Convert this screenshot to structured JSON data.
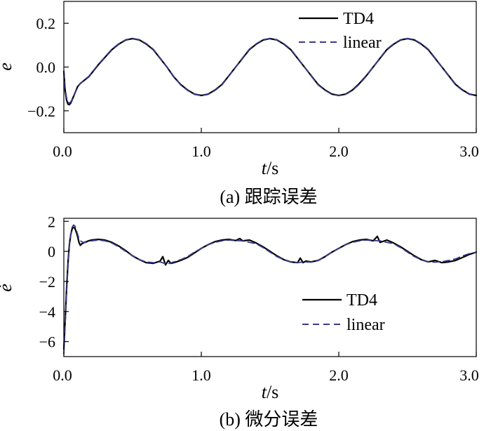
{
  "chart_data": [
    {
      "type": "line",
      "caption": "(a) 跟踪误差",
      "xlabel_var": "t",
      "xlabel_unit": "/s",
      "ylabel": "e",
      "xlim": [
        0,
        3.0
      ],
      "ylim": [
        -0.3,
        0.3
      ],
      "xticks": [
        0.0,
        1.0,
        2.0,
        3.0
      ],
      "xtick_labels": [
        "0.0",
        "1.0",
        "2.0",
        "3.0"
      ],
      "yticks": [
        0.2,
        0.0,
        -0.2
      ],
      "ytick_labels": [
        "0.2",
        "0.0",
        "−0.2"
      ],
      "legend_position": "top-right",
      "series": [
        {
          "name": "TD4",
          "style": "solid",
          "color": "#000000",
          "x": [
            0,
            0.005,
            0.01,
            0.02,
            0.03,
            0.04,
            0.05,
            0.06,
            0.08,
            0.1,
            0.12,
            0.15,
            0.18,
            0.2,
            0.25,
            0.3,
            0.35,
            0.4,
            0.45,
            0.5,
            0.55,
            0.6,
            0.65,
            0.7,
            0.75,
            0.8,
            0.85,
            0.9,
            0.95,
            1.0,
            1.05,
            1.1,
            1.15,
            1.2,
            1.25,
            1.3,
            1.35,
            1.4,
            1.45,
            1.5,
            1.55,
            1.6,
            1.65,
            1.7,
            1.75,
            1.8,
            1.85,
            1.9,
            1.95,
            2.0,
            2.05,
            2.1,
            2.15,
            2.2,
            2.25,
            2.3,
            2.35,
            2.4,
            2.45,
            2.5,
            2.55,
            2.6,
            2.65,
            2.7,
            2.75,
            2.8,
            2.85,
            2.9,
            2.95,
            3.0
          ],
          "y": [
            -0.02,
            -0.07,
            -0.11,
            -0.15,
            -0.17,
            -0.172,
            -0.165,
            -0.15,
            -0.12,
            -0.09,
            -0.075,
            -0.06,
            -0.045,
            -0.03,
            0.01,
            0.045,
            0.08,
            0.105,
            0.124,
            0.13,
            0.124,
            0.105,
            0.08,
            0.04,
            0.0,
            -0.045,
            -0.08,
            -0.105,
            -0.124,
            -0.13,
            -0.124,
            -0.105,
            -0.08,
            -0.04,
            0.0,
            0.04,
            0.08,
            0.105,
            0.124,
            0.13,
            0.124,
            0.105,
            0.08,
            0.04,
            0.0,
            -0.04,
            -0.08,
            -0.105,
            -0.124,
            -0.13,
            -0.124,
            -0.105,
            -0.075,
            -0.04,
            0.0,
            0.04,
            0.08,
            0.105,
            0.124,
            0.13,
            0.124,
            0.105,
            0.08,
            0.04,
            0.0,
            -0.04,
            -0.08,
            -0.105,
            -0.124,
            -0.13
          ]
        },
        {
          "name": "linear",
          "style": "dashed",
          "color": "#3a3a8c",
          "x": [
            0,
            0.005,
            0.01,
            0.02,
            0.03,
            0.04,
            0.05,
            0.06,
            0.08,
            0.1,
            0.12,
            0.15,
            0.18,
            0.2,
            0.25,
            0.3,
            0.35,
            0.4,
            0.45,
            0.5,
            0.55,
            0.6,
            0.65,
            0.7,
            0.75,
            0.8,
            0.85,
            0.9,
            0.95,
            1.0,
            1.05,
            1.1,
            1.15,
            1.2,
            1.25,
            1.3,
            1.35,
            1.4,
            1.45,
            1.5,
            1.55,
            1.6,
            1.65,
            1.7,
            1.75,
            1.8,
            1.85,
            1.9,
            1.95,
            2.0,
            2.05,
            2.1,
            2.15,
            2.2,
            2.25,
            2.3,
            2.35,
            2.4,
            2.45,
            2.5,
            2.55,
            2.6,
            2.65,
            2.7,
            2.75,
            2.8,
            2.85,
            2.9,
            2.95,
            3.0
          ],
          "y": [
            -0.02,
            -0.06,
            -0.1,
            -0.14,
            -0.16,
            -0.165,
            -0.16,
            -0.148,
            -0.12,
            -0.092,
            -0.075,
            -0.058,
            -0.043,
            -0.028,
            0.012,
            0.047,
            0.082,
            0.107,
            0.125,
            0.131,
            0.125,
            0.107,
            0.082,
            0.042,
            0.0,
            -0.043,
            -0.082,
            -0.107,
            -0.125,
            -0.131,
            -0.125,
            -0.107,
            -0.082,
            -0.042,
            0.0,
            0.042,
            0.082,
            0.107,
            0.125,
            0.131,
            0.125,
            0.107,
            0.082,
            0.042,
            0.0,
            -0.042,
            -0.082,
            -0.107,
            -0.125,
            -0.131,
            -0.125,
            -0.107,
            -0.078,
            -0.042,
            0.0,
            0.042,
            0.082,
            0.107,
            0.125,
            0.131,
            0.125,
            0.107,
            0.082,
            0.042,
            0.0,
            -0.042,
            -0.082,
            -0.107,
            -0.125,
            -0.131
          ]
        }
      ]
    },
    {
      "type": "line",
      "caption": "(b) 微分误差",
      "xlabel_var": "t",
      "xlabel_unit": "/s",
      "ylabel": "ė",
      "xlim": [
        0,
        3.0
      ],
      "ylim": [
        -7,
        2.2
      ],
      "xticks": [
        0.0,
        1.0,
        2.0,
        3.0
      ],
      "xtick_labels": [
        "0.0",
        "1.0",
        "2.0",
        "3.0"
      ],
      "yticks": [
        2,
        0,
        -2,
        -4,
        -6
      ],
      "ytick_labels": [
        "2",
        "0",
        "−2",
        "−4",
        "−6"
      ],
      "legend_position": "center-right",
      "series": [
        {
          "name": "TD4",
          "style": "solid",
          "color": "#000000",
          "x": [
            0,
            0.01,
            0.02,
            0.03,
            0.04,
            0.05,
            0.06,
            0.07,
            0.08,
            0.09,
            0.1,
            0.11,
            0.12,
            0.13,
            0.15,
            0.18,
            0.2,
            0.25,
            0.3,
            0.35,
            0.4,
            0.45,
            0.5,
            0.55,
            0.6,
            0.65,
            0.7,
            0.72,
            0.74,
            0.76,
            0.78,
            0.8,
            0.85,
            0.9,
            0.95,
            1.0,
            1.05,
            1.1,
            1.15,
            1.2,
            1.25,
            1.28,
            1.3,
            1.35,
            1.4,
            1.45,
            1.5,
            1.55,
            1.6,
            1.65,
            1.7,
            1.72,
            1.74,
            1.76,
            1.8,
            1.85,
            1.9,
            1.95,
            2.0,
            2.05,
            2.1,
            2.15,
            2.2,
            2.25,
            2.28,
            2.3,
            2.35,
            2.4,
            2.45,
            2.5,
            2.55,
            2.6,
            2.65,
            2.7,
            2.75,
            2.8,
            2.85,
            2.9,
            2.95,
            3.0
          ],
          "y": [
            -6.5,
            -4.5,
            -2.5,
            -0.8,
            0.4,
            1.1,
            1.5,
            1.6,
            1.55,
            1.3,
            1.0,
            0.6,
            0.4,
            0.5,
            0.6,
            0.7,
            0.75,
            0.8,
            0.75,
            0.6,
            0.35,
            0.05,
            -0.3,
            -0.55,
            -0.75,
            -0.8,
            -0.65,
            -0.35,
            -0.9,
            -0.6,
            -0.8,
            -0.75,
            -0.6,
            -0.4,
            -0.1,
            0.2,
            0.45,
            0.65,
            0.75,
            0.8,
            0.72,
            0.85,
            0.7,
            0.75,
            0.55,
            0.3,
            0.0,
            -0.3,
            -0.55,
            -0.7,
            -0.75,
            -0.45,
            -0.75,
            -0.65,
            -0.7,
            -0.6,
            -0.35,
            -0.05,
            0.2,
            0.45,
            0.65,
            0.75,
            0.8,
            0.7,
            1.0,
            0.6,
            0.75,
            0.55,
            0.3,
            0.0,
            -0.3,
            -0.55,
            -0.7,
            -0.6,
            -0.75,
            -0.7,
            -0.6,
            -0.4,
            -0.2,
            -0.05
          ]
        },
        {
          "name": "linear",
          "style": "dashed",
          "color": "#3a3a8c",
          "x": [
            0,
            0.01,
            0.02,
            0.03,
            0.04,
            0.05,
            0.06,
            0.07,
            0.08,
            0.09,
            0.1,
            0.11,
            0.12,
            0.14,
            0.16,
            0.18,
            0.2,
            0.25,
            0.3,
            0.35,
            0.4,
            0.45,
            0.5,
            0.55,
            0.6,
            0.65,
            0.7,
            0.75,
            0.8,
            0.85,
            0.9,
            0.95,
            1.0,
            1.05,
            1.1,
            1.15,
            1.2,
            1.25,
            1.3,
            1.35,
            1.4,
            1.45,
            1.5,
            1.55,
            1.6,
            1.65,
            1.7,
            1.75,
            1.8,
            1.85,
            1.9,
            1.95,
            2.0,
            2.05,
            2.1,
            2.15,
            2.2,
            2.25,
            2.3,
            2.35,
            2.4,
            2.45,
            2.5,
            2.55,
            2.6,
            2.65,
            2.7,
            2.75,
            2.8,
            2.85,
            2.9,
            2.95,
            3.0
          ],
          "y": [
            -6.8,
            -4.8,
            -2.8,
            -1.0,
            0.3,
            1.1,
            1.6,
            1.75,
            1.7,
            1.45,
            1.15,
            0.85,
            0.7,
            0.6,
            0.6,
            0.65,
            0.7,
            0.75,
            0.7,
            0.55,
            0.3,
            0.0,
            -0.3,
            -0.55,
            -0.7,
            -0.75,
            -0.7,
            -0.85,
            -0.7,
            -0.55,
            -0.35,
            -0.05,
            0.2,
            0.45,
            0.6,
            0.7,
            0.75,
            0.72,
            0.7,
            0.6,
            0.5,
            0.25,
            -0.05,
            -0.35,
            -0.55,
            -0.7,
            -0.75,
            -0.7,
            -0.72,
            -0.6,
            -0.35,
            -0.05,
            0.2,
            0.45,
            0.6,
            0.7,
            0.75,
            0.72,
            0.7,
            0.6,
            0.5,
            0.25,
            -0.05,
            -0.35,
            -0.55,
            -0.7,
            -0.72,
            -0.68,
            -0.6,
            -0.5,
            -0.3,
            -0.15,
            -0.05
          ]
        }
      ]
    }
  ]
}
